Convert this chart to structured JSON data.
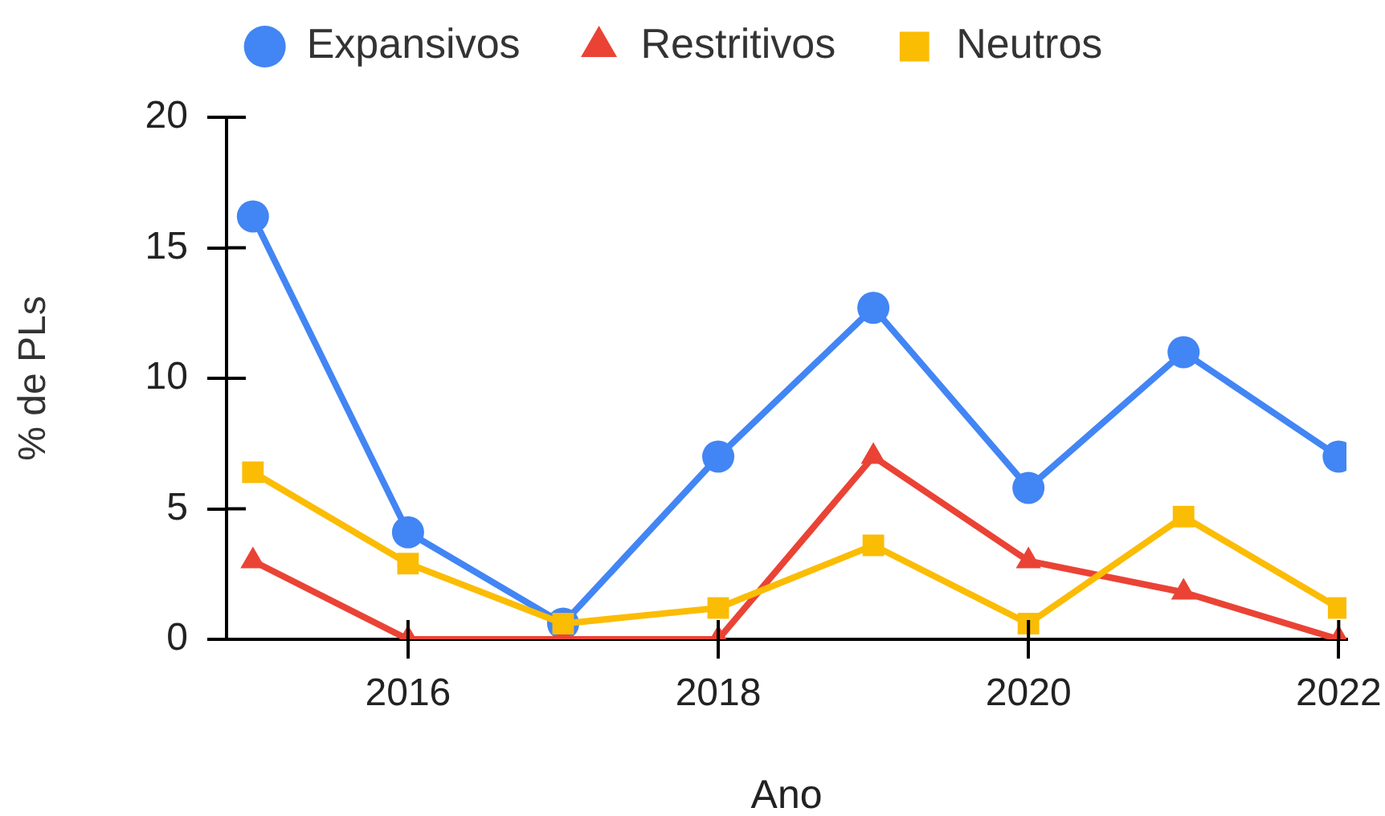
{
  "chart_data": {
    "type": "line",
    "xlabel": "Ano",
    "ylabel": "% de PLs",
    "legend": "top",
    "line_style": "solid",
    "x": [
      2015,
      2016,
      2017,
      2018,
      2019,
      2020,
      2021,
      2022
    ],
    "xlim": [
      2014.83,
      2022.05
    ],
    "xticks": [
      2016,
      2018,
      2020,
      2022
    ],
    "ylim": [
      0,
      20
    ],
    "yticks": [
      0,
      5,
      10,
      15,
      20
    ],
    "series": [
      {
        "name": "Expansivos",
        "color": "#4285f4",
        "marker": "circle",
        "values": [
          16.2,
          4.1,
          0.6,
          7.0,
          12.7,
          5.8,
          11.0,
          7.0
        ]
      },
      {
        "name": "Restritivos",
        "color": "#ea4335",
        "marker": "triangle",
        "values": [
          3.0,
          0,
          0,
          0,
          7.0,
          3.0,
          1.8,
          0
        ]
      },
      {
        "name": "Neutros",
        "color": "#fbbc04",
        "marker": "square",
        "values": [
          6.4,
          2.9,
          0.6,
          1.2,
          3.6,
          0.6,
          4.7,
          1.2
        ]
      }
    ]
  }
}
